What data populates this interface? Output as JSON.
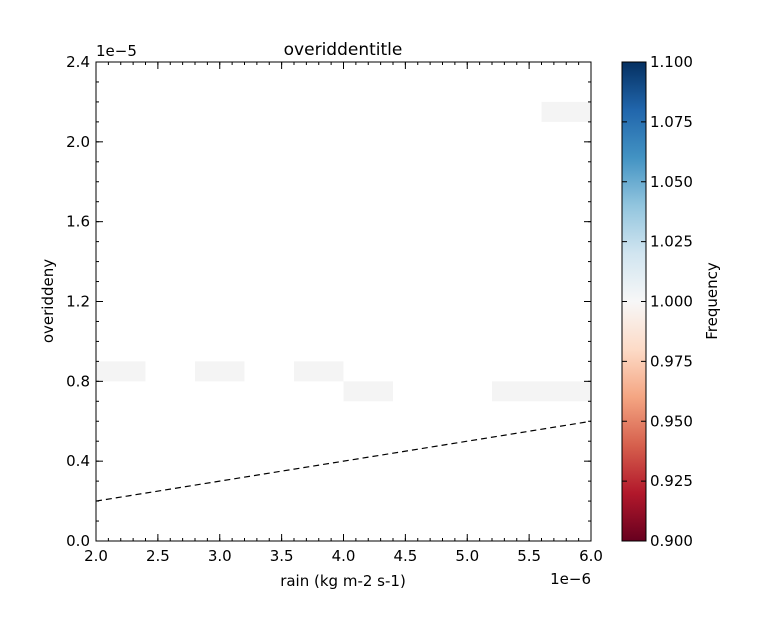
{
  "chart_data": {
    "type": "heatmap",
    "title": "overiddentitle",
    "xlabel": "rain (kg m-2 s-1)",
    "ylabel": "overiddeny",
    "x_offset_text": "1e−6",
    "y_offset_text": "1e−5",
    "xlim": [
      2e-06,
      6e-06
    ],
    "ylim": [
      0,
      2.4e-05
    ],
    "x_ticks": [
      2e-06,
      2.5e-06,
      3e-06,
      3.5e-06,
      4e-06,
      4.5e-06,
      5e-06,
      5.5e-06,
      6e-06
    ],
    "x_tick_labels": [
      "2.0",
      "2.5",
      "3.0",
      "3.5",
      "4.0",
      "4.5",
      "5.0",
      "5.5",
      "6.0"
    ],
    "y_ticks": [
      0,
      4e-06,
      8e-06,
      1.2e-05,
      1.6e-05,
      2e-05,
      2.4e-05
    ],
    "y_tick_labels": [
      "0.0",
      "0.4",
      "0.8",
      "1.2",
      "1.6",
      "2.0",
      "2.4"
    ],
    "cells": [
      {
        "x0": 2e-06,
        "x1": 2.4e-06,
        "y0": 8e-06,
        "y1": 9e-06,
        "value": 1.0
      },
      {
        "x0": 2.8e-06,
        "x1": 3.2e-06,
        "y0": 8e-06,
        "y1": 9e-06,
        "value": 1.0
      },
      {
        "x0": 3.6e-06,
        "x1": 4e-06,
        "y0": 8e-06,
        "y1": 9e-06,
        "value": 1.0
      },
      {
        "x0": 4e-06,
        "x1": 4.4e-06,
        "y0": 7e-06,
        "y1": 8e-06,
        "value": 1.0
      },
      {
        "x0": 5.2e-06,
        "x1": 6e-06,
        "y0": 7e-06,
        "y1": 8e-06,
        "value": 1.0
      },
      {
        "x0": 5.6e-06,
        "x1": 6e-06,
        "y0": 2.1e-05,
        "y1": 2.2e-05,
        "value": 1.0
      }
    ],
    "reference_line": {
      "style": "dashed",
      "color": "#000000",
      "points": [
        [
          2e-06,
          2e-06
        ],
        [
          6e-06,
          6e-06
        ]
      ]
    },
    "colorbar": {
      "label": "Frequency",
      "min": 0.9,
      "max": 1.1,
      "ticks": [
        0.9,
        0.925,
        0.95,
        0.975,
        1.0,
        1.025,
        1.05,
        1.075,
        1.1
      ],
      "tick_labels": [
        "0.900",
        "0.925",
        "0.950",
        "0.975",
        "1.000",
        "1.025",
        "1.050",
        "1.075",
        "1.100"
      ],
      "colormap": "RdBu",
      "stops": [
        "#67001f",
        "#b2182b",
        "#d6604d",
        "#f4a582",
        "#fddbc7",
        "#f7f7f7",
        "#d1e5f0",
        "#92c5de",
        "#4393c3",
        "#2166ac",
        "#053061"
      ]
    },
    "grid": false,
    "legend": "none",
    "cell_color": "#f4f4f4"
  }
}
